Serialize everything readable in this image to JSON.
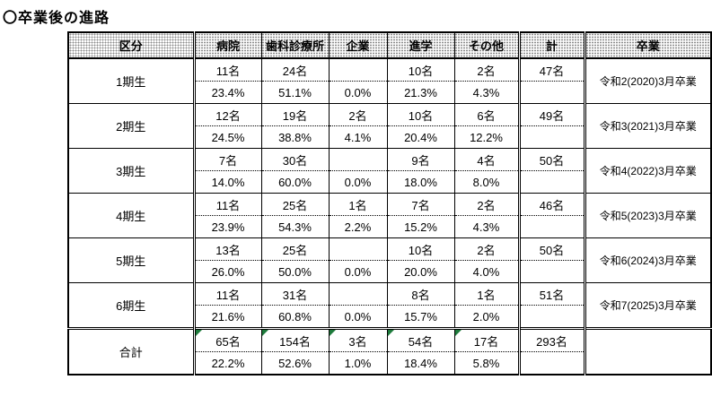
{
  "page_title": "〇卒業後の進路",
  "colors": {
    "border": "#000000",
    "header_pattern_dot": "#8c8c8c",
    "flag_green": "#1e7b3c"
  },
  "table": {
    "headers": [
      "区分",
      "病院",
      "歯科診療所",
      "企業",
      "進学",
      "その他",
      "計",
      "卒業"
    ],
    "rows": [
      {
        "label": "1期生",
        "counts": [
          "11名",
          "24名",
          "",
          "10名",
          "2名"
        ],
        "total": "47名",
        "percents": [
          "23.4%",
          "51.1%",
          "0.0%",
          "21.3%",
          "4.3%"
        ],
        "graduation": "令和2(2020)3月卒業"
      },
      {
        "label": "2期生",
        "counts": [
          "12名",
          "19名",
          "2名",
          "10名",
          "6名"
        ],
        "total": "49名",
        "percents": [
          "24.5%",
          "38.8%",
          "4.1%",
          "20.4%",
          "12.2%"
        ],
        "graduation": "令和3(2021)3月卒業"
      },
      {
        "label": "3期生",
        "counts": [
          "7名",
          "30名",
          "",
          "9名",
          "4名"
        ],
        "total": "50名",
        "percents": [
          "14.0%",
          "60.0%",
          "0.0%",
          "18.0%",
          "8.0%"
        ],
        "graduation": "令和4(2022)3月卒業"
      },
      {
        "label": "4期生",
        "counts": [
          "11名",
          "25名",
          "1名",
          "7名",
          "2名"
        ],
        "total": "46名",
        "percents": [
          "23.9%",
          "54.3%",
          "2.2%",
          "15.2%",
          "4.3%"
        ],
        "graduation": "令和5(2023)3月卒業"
      },
      {
        "label": "5期生",
        "counts": [
          "13名",
          "25名",
          "",
          "10名",
          "2名"
        ],
        "total": "50名",
        "percents": [
          "26.0%",
          "50.0%",
          "0.0%",
          "20.0%",
          "4.0%"
        ],
        "graduation": "令和6(2024)3月卒業"
      },
      {
        "label": "6期生",
        "counts": [
          "11名",
          "31名",
          "",
          "8名",
          "1名"
        ],
        "total": "51名",
        "percents": [
          "21.6%",
          "60.8%",
          "0.0%",
          "15.7%",
          "2.0%"
        ],
        "graduation": "令和7(2025)3月卒業"
      }
    ],
    "total_row": {
      "label": "合計",
      "counts": [
        "65名",
        "154名",
        "3名",
        "54名",
        "17名"
      ],
      "flagged": [
        true,
        true,
        true,
        true,
        true
      ],
      "total": "293名",
      "percents": [
        "22.2%",
        "52.6%",
        "1.0%",
        "18.4%",
        "5.8%"
      ],
      "graduation": ""
    }
  }
}
